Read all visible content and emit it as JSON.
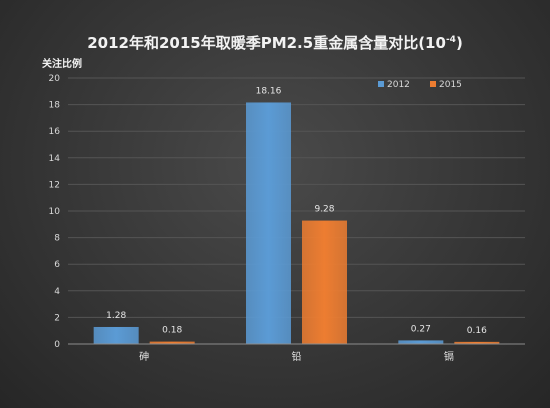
{
  "chart_data": {
    "type": "bar",
    "title_main": "2012年和2015年取暖季PM2.5重金属含量对比(10",
    "title_exp": "-4",
    "title_close": ")",
    "ylabel": "关注比例",
    "categories": [
      "砷",
      "铅",
      "镉"
    ],
    "series": [
      {
        "name": "2012",
        "color": "#5b9bd5",
        "values": [
          1.28,
          18.16,
          0.27
        ]
      },
      {
        "name": "2015",
        "color": "#ed7d31",
        "values": [
          0.18,
          9.28,
          0.16
        ]
      }
    ],
    "data_labels": [
      [
        "1.28",
        "18.16",
        "0.27"
      ],
      [
        "0.18",
        "9.28",
        "0.16"
      ]
    ],
    "ylim": [
      0,
      20
    ],
    "yticks": [
      "0",
      "2",
      "4",
      "6",
      "8",
      "10",
      "12",
      "14",
      "16",
      "18",
      "20"
    ],
    "grid": true,
    "legend_position": "top-right"
  }
}
